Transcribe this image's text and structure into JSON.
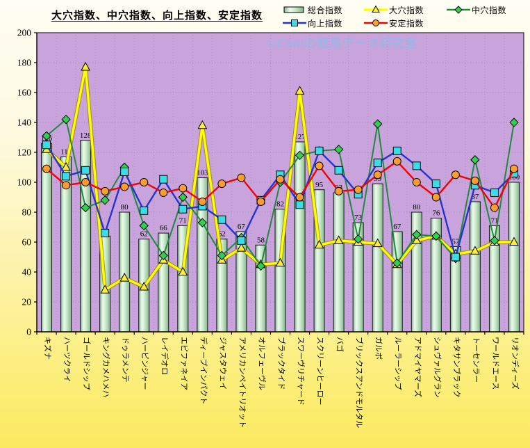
{
  "title": "大穴指数、中穴指数、向上指数、安定指数",
  "watermark": "©Caniの競馬データ研究室",
  "legend": {
    "items": [
      {
        "label": "総合指数",
        "swatch": "bar"
      },
      {
        "label": "大穴指数",
        "swatch": "triangle"
      },
      {
        "label": "中穴指数",
        "swatch": "diamond"
      },
      {
        "label": "向上指数",
        "swatch": "square"
      },
      {
        "label": "安定指数",
        "swatch": "circle"
      }
    ]
  },
  "colors": {
    "plot_bg": "#c9a3dc",
    "grid": "#8f8f8f",
    "axis": "#000000",
    "watermark_text": "#9db4e6",
    "bar_edge": "#84b68f",
    "bar_center": "#ecfbec",
    "yellow_line": "#ffff00",
    "green_line": "#1d8a3e",
    "blue_line": "#2433cf",
    "red_line": "#f40000",
    "triangle_marker": "#ffee33",
    "diamond_marker": "#2fd04f",
    "square_marker": "#3adce8",
    "circle_marker": "#ff9d2e"
  },
  "y_axis": {
    "ticks": [
      0,
      20,
      40,
      60,
      80,
      100,
      120,
      140,
      160,
      180,
      200
    ]
  },
  "chart_data": {
    "type": "bar",
    "subtype": "combo-bar-line",
    "title": "大穴指数、中穴指数、向上指数、安定指数",
    "categories": [
      "キズナ",
      "ハーツクライ",
      "ゴールドシップ",
      "キングカメハメハ",
      "ドゥラメンテ",
      "ハービンジャー",
      "レイデオロ",
      "エピファネイア",
      "ディープインパクト",
      "ジャスタウェイ",
      "アメリカンペイトリオット",
      "オルフェーヴル",
      "ブラックタイド",
      "スワーヴリチャード",
      "スクリーンヒーロー",
      "バゴ",
      "ブリックスアンドモルタル",
      "ガルボ",
      "ルーラーシップ",
      "アドマイヤマーズ",
      "シュヴァルグラン",
      "キタサンブラック",
      "トーセンラー",
      "ワールドエース",
      "リオンディーズ"
    ],
    "series": [
      {
        "name": "総合指数",
        "type": "bar",
        "values": [
          126,
          117,
          128,
          64,
          80,
          62,
          66,
          71,
          103,
          62,
          67,
          58,
          82,
          127,
          95,
          93,
          73,
          99,
          67,
          80,
          76,
          57,
          87,
          71,
          100
        ]
      },
      {
        "name": "大穴指数",
        "type": "line",
        "marker": "triangle",
        "line_color": "#ffff00",
        "marker_fill": "#ffee33",
        "values": [
          122,
          110,
          177,
          28,
          36,
          30,
          48,
          40,
          138,
          48,
          56,
          45,
          46,
          161,
          58,
          61,
          60,
          59,
          45,
          61,
          64,
          52,
          54,
          60,
          60
        ]
      },
      {
        "name": "中穴指数",
        "type": "line",
        "marker": "diamond",
        "line_color": "#1d8a3e",
        "marker_fill": "#2fd04f",
        "values": [
          131,
          142,
          83,
          88,
          110,
          71,
          51,
          90,
          73,
          51,
          63,
          44,
          100,
          118,
          121,
          122,
          62,
          139,
          46,
          65,
          64,
          49,
          115,
          61,
          140
        ]
      },
      {
        "name": "向上指数",
        "type": "line",
        "marker": "square",
        "line_color": "#2433cf",
        "marker_fill": "#3adce8",
        "values": [
          125,
          104,
          108,
          66,
          107,
          81,
          102,
          82,
          84,
          75,
          61,
          88,
          105,
          85,
          121,
          108,
          92,
          113,
          121,
          111,
          99,
          50,
          98,
          93,
          106
        ]
      },
      {
        "name": "安定指数",
        "type": "line",
        "marker": "circle",
        "line_color": "#f40000",
        "marker_fill": "#ff9d2e",
        "values": [
          109,
          98,
          100,
          94,
          97,
          100,
          93,
          96,
          87,
          99,
          103,
          87,
          102,
          90,
          111,
          94,
          95,
          105,
          114,
          100,
          90,
          105,
          101,
          83,
          109
        ]
      }
    ],
    "ylim": [
      0,
      200
    ],
    "ytick_interval": 20,
    "grid": "both-dotted",
    "legend_position": "top-right",
    "bar_value_labels": true,
    "x_label_rotation": 90
  }
}
